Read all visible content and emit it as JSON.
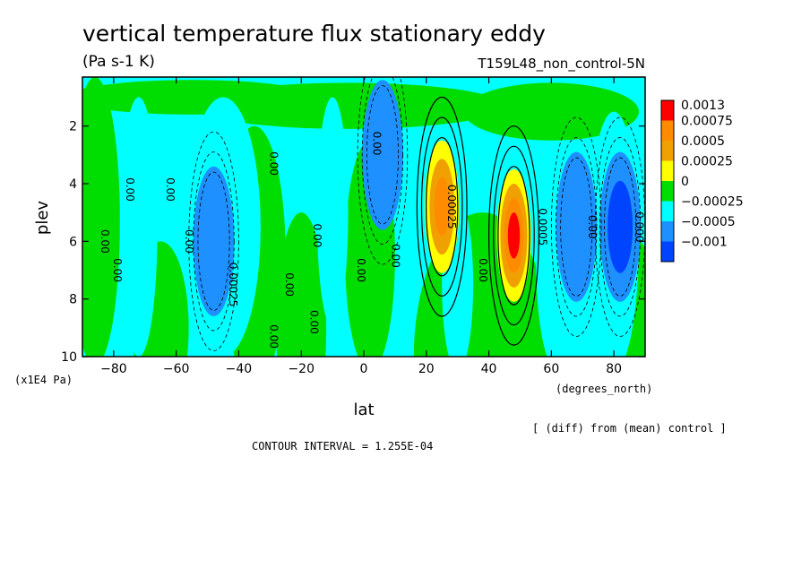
{
  "header": {
    "title": "vertical temperature flux stationary eddy",
    "units": "(Pa s-1 K)",
    "run_label": "T159L48_non_control-5N",
    "note": "[ (diff) from (mean) control ]",
    "contour_interval": "CONTOUR INTERVAL = 1.255E-04"
  },
  "chart_data": {
    "type": "heatmap",
    "xlabel": "lat",
    "ylabel": "plev",
    "x_units": "(degrees_north)",
    "y_units": "(x1E4 Pa)",
    "xlim": [
      -90,
      90
    ],
    "ylim": [
      10,
      0.3
    ],
    "x_ticks": [
      -80,
      -60,
      -40,
      -20,
      0,
      20,
      40,
      60,
      80
    ],
    "y_ticks": [
      2,
      4,
      6,
      8,
      10
    ],
    "legend": {
      "placement": "right",
      "labels": [
        "0.0013",
        "0.00075",
        "0.0005",
        "0.00025",
        "0",
        "-0.00025",
        "-0.0005",
        "-0.001"
      ],
      "colors": [
        "#ff0000",
        "#ff8c00",
        "#f0a000",
        "#ffff00",
        "#00dd00",
        "#00ffff",
        "#1e90ff",
        "#0044ff"
      ]
    },
    "levels_labels": [
      "-0.00025",
      "-0.0005",
      "0",
      "0.00025",
      "0.0005",
      "0.00075"
    ],
    "features": [
      {
        "lat": 25,
        "plev": 4.8,
        "value": 0.00075
      },
      {
        "lat": 48,
        "plev": 5.8,
        "value": 0.0013
      },
      {
        "lat": -48,
        "plev": 6.0,
        "value": -0.0005
      },
      {
        "lat": 68,
        "plev": 5.5,
        "value": -0.0005
      },
      {
        "lat": 82,
        "plev": 5.5,
        "value": -0.001
      },
      {
        "lat": 6,
        "plev": 3.0,
        "value": -0.0005
      }
    ],
    "contour_labels": [
      {
        "text": "0.00",
        "lat": -84,
        "plev": 6.0
      },
      {
        "text": "0.00",
        "lat": -80,
        "plev": 7.0
      },
      {
        "text": "0.00",
        "lat": -76,
        "plev": 4.2
      },
      {
        "text": "0.00",
        "lat": -63,
        "plev": 4.2
      },
      {
        "text": "0.00",
        "lat": -57,
        "plev": 6.0
      },
      {
        "text": "0.00025",
        "lat": -43,
        "plev": 7.5
      },
      {
        "text": "0.00",
        "lat": -30,
        "plev": 3.3
      },
      {
        "text": "0.00",
        "lat": -25,
        "plev": 7.5
      },
      {
        "text": "0.00",
        "lat": -16,
        "plev": 5.8
      },
      {
        "text": "0.00",
        "lat": -30,
        "plev": 9.3
      },
      {
        "text": "0.00",
        "lat": -17,
        "plev": 8.8
      },
      {
        "text": "0.00",
        "lat": -2,
        "plev": 7.0
      },
      {
        "text": "0.00",
        "lat": 3,
        "plev": 2.6
      },
      {
        "text": "0.00",
        "lat": 9,
        "plev": 6.5
      },
      {
        "text": "0.00025",
        "lat": 27,
        "plev": 4.8
      },
      {
        "text": "0.00",
        "lat": 37,
        "plev": 7.0
      },
      {
        "text": "0.0005",
        "lat": 56,
        "plev": 5.5
      },
      {
        "text": "0.00",
        "lat": 72,
        "plev": 5.5
      },
      {
        "text": "0.000",
        "lat": 87,
        "plev": 5.5
      }
    ]
  }
}
